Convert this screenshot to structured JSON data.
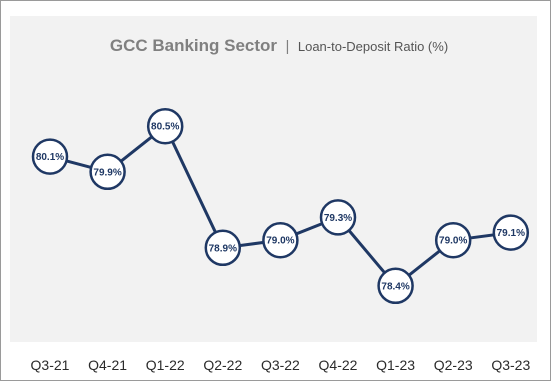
{
  "chart_data": {
    "type": "line",
    "title": "GCC Banking Sector",
    "subtitle": "Loan-to-Deposit Ratio (%)",
    "categories": [
      "Q3-21",
      "Q4-21",
      "Q1-22",
      "Q2-22",
      "Q3-22",
      "Q4-22",
      "Q1-23",
      "Q2-23",
      "Q3-23"
    ],
    "series": [
      {
        "values": [
          80.1,
          79.9,
          80.5,
          78.9,
          79.0,
          79.3,
          78.4,
          79.0,
          79.1
        ],
        "labels": [
          "80.1%",
          "79.9%",
          "80.5%",
          "78.9%",
          "79.0%",
          "79.3%",
          "78.4%",
          "79.0%",
          "79.1%"
        ]
      }
    ],
    "ylim": [
      78.2,
      80.7
    ],
    "grid": false,
    "colors": {
      "line": "#1f3864",
      "marker_fill": "#ffffff",
      "panel_bg": "#f2f2f2",
      "title": "#808080"
    }
  },
  "title": {
    "main": "GCC Banking Sector",
    "separator": "|",
    "sub": "Loan-to-Deposit Ratio (%)"
  }
}
